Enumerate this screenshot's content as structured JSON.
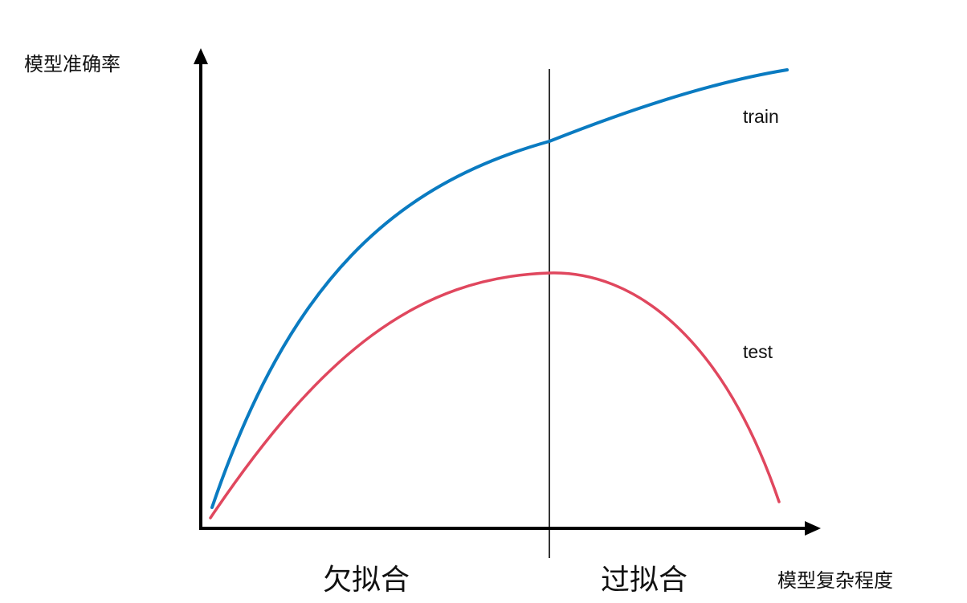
{
  "diagram": {
    "y_axis_label": "模型准确率",
    "x_axis_label": "模型复杂程度",
    "regions": {
      "left": "欠拟合",
      "right": "过拟合"
    },
    "curves": {
      "train": {
        "label": "train",
        "color": "#0a7bc1"
      },
      "test": {
        "label": "test",
        "color": "#e0475e"
      }
    },
    "axis_color": "#000000"
  }
}
